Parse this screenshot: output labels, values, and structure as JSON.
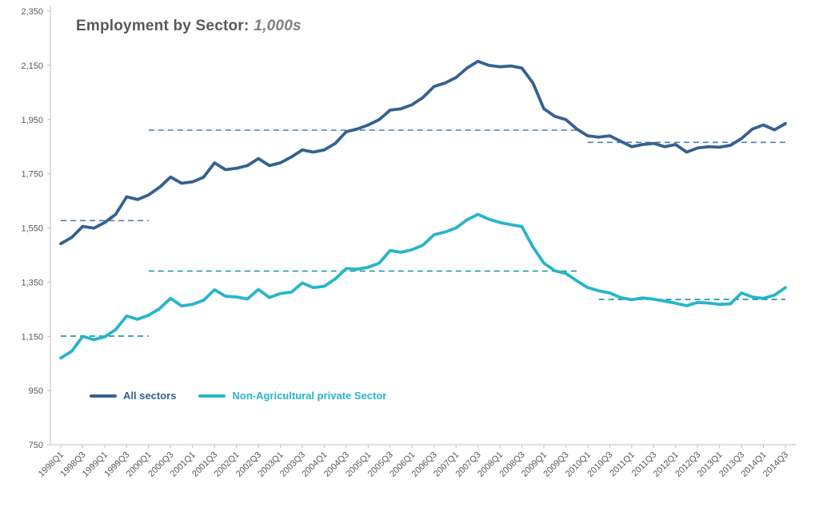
{
  "title": {
    "main": "Employment by Sector:",
    "unit": "1,000s"
  },
  "legend": [
    {
      "label": "All sectors",
      "color": "#35618F"
    },
    {
      "label": "Non-Agricultural private Sector",
      "color": "#27B5CB"
    }
  ],
  "chart_data": {
    "type": "line",
    "title": "Employment by Sector: 1,000s",
    "xlabel": "",
    "ylabel": "",
    "ylim": [
      750,
      2350
    ],
    "ytick_step": 200,
    "x_label_every": 2,
    "grid": false,
    "legend_position": "inside-bottom-left",
    "x": [
      "1998Q1",
      "1998Q2",
      "1998Q3",
      "1998Q4",
      "1999Q1",
      "1999Q2",
      "1999Q3",
      "1999Q4",
      "2000Q1",
      "2000Q2",
      "2000Q3",
      "2000Q4",
      "2001Q1",
      "2001Q2",
      "2001Q3",
      "2001Q4",
      "2002Q1",
      "2002Q2",
      "2002Q3",
      "2002Q4",
      "2003Q1",
      "2003Q2",
      "2003Q3",
      "2003Q4",
      "2004Q1",
      "2004Q2",
      "2004Q3",
      "2004Q4",
      "2005Q1",
      "2005Q2",
      "2005Q3",
      "2005Q4",
      "2006Q1",
      "2006Q2",
      "2006Q3",
      "2006Q4",
      "2007Q1",
      "2007Q2",
      "2007Q3",
      "2007Q4",
      "2008Q1",
      "2008Q2",
      "2008Q3",
      "2008Q4",
      "2009Q1",
      "2009Q2",
      "2009Q3",
      "2009Q4",
      "2010Q1",
      "2010Q2",
      "2010Q3",
      "2010Q4",
      "2011Q1",
      "2011Q2",
      "2011Q3",
      "2011Q4",
      "2012Q1",
      "2012Q2",
      "2012Q3",
      "2012Q4",
      "2013Q1",
      "2013Q2",
      "2013Q3",
      "2013Q4",
      "2014Q1",
      "2014Q2",
      "2014Q3"
    ],
    "series": [
      {
        "name": "All sectors",
        "color": "#35618F",
        "values": [
          1492,
          1515,
          1556,
          1549,
          1570,
          1600,
          1665,
          1655,
          1672,
          1700,
          1738,
          1715,
          1720,
          1737,
          1790,
          1765,
          1770,
          1780,
          1806,
          1780,
          1790,
          1812,
          1838,
          1830,
          1838,
          1862,
          1905,
          1915,
          1930,
          1950,
          1985,
          1990,
          2005,
          2032,
          2072,
          2085,
          2105,
          2140,
          2165,
          2150,
          2145,
          2148,
          2140,
          2085,
          1990,
          1962,
          1950,
          1915,
          1890,
          1885,
          1890,
          1870,
          1850,
          1858,
          1862,
          1850,
          1858,
          1830,
          1845,
          1850,
          1848,
          1855,
          1880,
          1915,
          1930,
          1912,
          1935
        ]
      },
      {
        "name": "Non-Agricultural private Sector",
        "color": "#27B5CB",
        "values": [
          1070,
          1095,
          1150,
          1138,
          1148,
          1175,
          1225,
          1213,
          1228,
          1252,
          1290,
          1262,
          1268,
          1283,
          1322,
          1298,
          1295,
          1288,
          1323,
          1293,
          1308,
          1313,
          1347,
          1330,
          1335,
          1362,
          1400,
          1398,
          1405,
          1420,
          1467,
          1460,
          1470,
          1487,
          1525,
          1535,
          1550,
          1580,
          1600,
          1582,
          1570,
          1562,
          1555,
          1480,
          1420,
          1392,
          1382,
          1355,
          1330,
          1318,
          1310,
          1293,
          1285,
          1292,
          1287,
          1280,
          1272,
          1263,
          1275,
          1273,
          1268,
          1270,
          1310,
          1295,
          1290,
          1302,
          1330
        ]
      }
    ],
    "reference_lines": [
      {
        "series": "All sectors",
        "style": "dashed",
        "color": "#4C7FB0",
        "value": 1577,
        "from": "1998Q1",
        "to": "2000Q1"
      },
      {
        "series": "All sectors",
        "style": "dashed",
        "color": "#4C7FB0",
        "value": 1911,
        "from": "2000Q1",
        "to": "2009Q4"
      },
      {
        "series": "All sectors",
        "style": "dashed",
        "color": "#4C7FB0",
        "value": 1866,
        "from": "2010Q1",
        "to": "2014Q3"
      },
      {
        "series": "Non-Agricultural private Sector",
        "style": "dashed",
        "color": "#13929E",
        "value": 1151,
        "from": "1998Q1",
        "to": "2000Q1"
      },
      {
        "series": "Non-Agricultural private Sector",
        "style": "dashed",
        "color": "#13929E",
        "value": 1391,
        "from": "2000Q1",
        "to": "2009Q4"
      },
      {
        "series": "Non-Agricultural private Sector",
        "style": "dashed",
        "color": "#13929E",
        "value": 1286,
        "from": "2010Q2",
        "to": "2014Q3"
      }
    ]
  }
}
